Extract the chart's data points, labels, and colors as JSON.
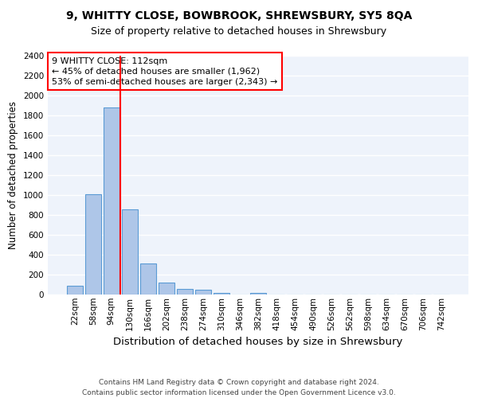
{
  "title1": "9, WHITTY CLOSE, BOWBROOK, SHREWSBURY, SY5 8QA",
  "title2": "Size of property relative to detached houses in Shrewsbury",
  "xlabel": "Distribution of detached houses by size in Shrewsbury",
  "ylabel": "Number of detached properties",
  "bar_labels": [
    "22sqm",
    "58sqm",
    "94sqm",
    "130sqm",
    "166sqm",
    "202sqm",
    "238sqm",
    "274sqm",
    "310sqm",
    "346sqm",
    "382sqm",
    "418sqm",
    "454sqm",
    "490sqm",
    "526sqm",
    "562sqm",
    "598sqm",
    "634sqm",
    "670sqm",
    "706sqm",
    "742sqm"
  ],
  "bar_values": [
    90,
    1010,
    1880,
    860,
    310,
    120,
    55,
    45,
    20,
    0,
    20,
    0,
    0,
    0,
    0,
    0,
    0,
    0,
    0,
    0,
    0
  ],
  "bar_color": "#aec6e8",
  "bar_edge_color": "#5b9bd5",
  "annotation_line1": "9 WHITTY CLOSE: 112sqm",
  "annotation_line2": "← 45% of detached houses are smaller (1,962)",
  "annotation_line3": "53% of semi-detached houses are larger (2,343) →",
  "annotation_box_color": "white",
  "annotation_box_edge_color": "red",
  "vline_color": "red",
  "ylim": [
    0,
    2400
  ],
  "yticks": [
    0,
    200,
    400,
    600,
    800,
    1000,
    1200,
    1400,
    1600,
    1800,
    2000,
    2200,
    2400
  ],
  "bg_color": "#eef3fb",
  "grid_color": "white",
  "footer_line1": "Contains HM Land Registry data © Crown copyright and database right 2024.",
  "footer_line2": "Contains public sector information licensed under the Open Government Licence v3.0.",
  "title1_fontsize": 10,
  "title2_fontsize": 9,
  "xlabel_fontsize": 9.5,
  "ylabel_fontsize": 8.5,
  "tick_fontsize": 7.5,
  "annotation_fontsize": 8,
  "footer_fontsize": 6.5
}
